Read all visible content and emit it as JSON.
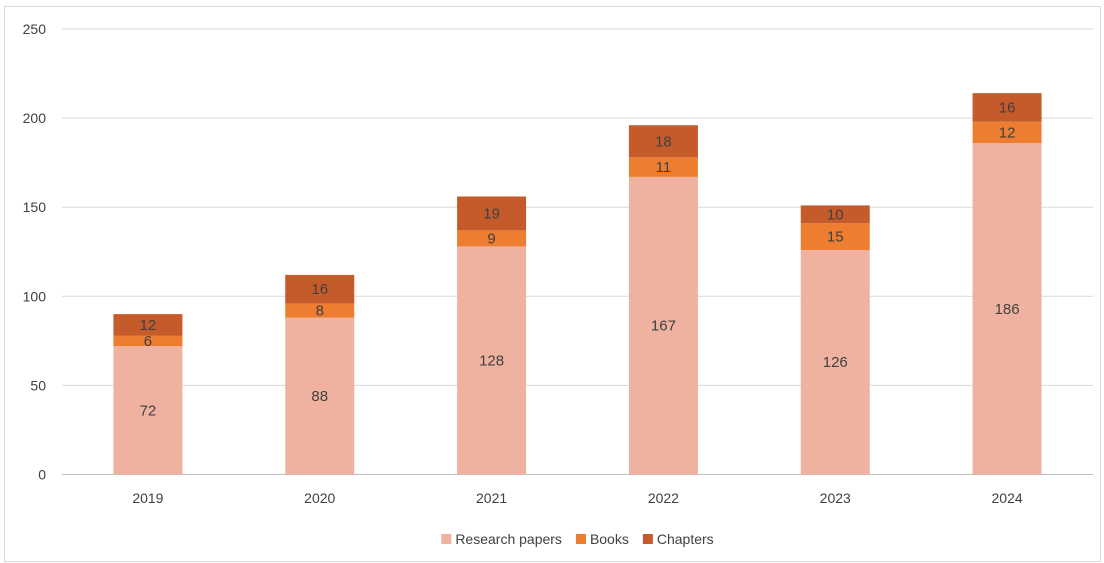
{
  "chart_data": {
    "type": "bar",
    "stacked": true,
    "categories": [
      "2019",
      "2020",
      "2021",
      "2022",
      "2023",
      "2024"
    ],
    "series": [
      {
        "name": "Research papers",
        "color": "#f0b2a0",
        "values": [
          72,
          88,
          128,
          167,
          126,
          186
        ]
      },
      {
        "name": "Books",
        "color": "#ed7d31",
        "values": [
          6,
          8,
          9,
          11,
          15,
          12
        ]
      },
      {
        "name": "Chapters",
        "color": "#c55a2a",
        "values": [
          12,
          16,
          19,
          18,
          10,
          16
        ]
      }
    ],
    "ylim": [
      0,
      250
    ],
    "yticks": [
      "0",
      "50",
      "100",
      "150",
      "200",
      "250"
    ],
    "grid": true,
    "legend": "bottom",
    "data_labels": true,
    "title": "",
    "xlabel": "",
    "ylabel": ""
  }
}
